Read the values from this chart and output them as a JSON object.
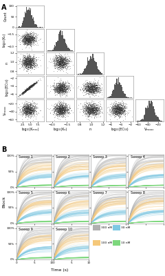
{
  "scatter_color": "#333333",
  "hist_color": "#555555",
  "sweep_colors_order": [
    "300nM",
    "100nM",
    "30nM",
    "10nM"
  ],
  "sweep_colors": {
    "300nM": "#b0b0b0",
    "30nM": "#7ec8e3",
    "100nM": "#f5c87a",
    "10nM": "#7dd87d"
  },
  "sweep_labels": {
    "300nM": "300 nM",
    "30nM": "30 nM",
    "100nM": "100 nM",
    "10nM": "10 nM"
  },
  "peak_blocks": {
    "300nM": 0.9,
    "100nM": 0.68,
    "30nM": 0.38,
    "10nM": 0.07
  },
  "time_consts": {
    "300nM": 1.8,
    "100nM": 2.2,
    "30nM": 3.0,
    "10nM": 4.5
  },
  "xlabels": [
    "log10(Kmax)",
    "log10(Kn)",
    "n",
    "log10(EC50)",
    "Vmax"
  ],
  "xlabel_display": [
    "log₁₀(Kₘₐₓ)",
    "log₁₀(Kₙ)",
    "n",
    "log₁₀(EC₅₀)",
    "Vₘₐₓₐₓ"
  ],
  "ylabel_display": [
    "Count",
    "log₁₀(Kₙ)",
    "n",
    "log₁₀(EC₅₀)",
    "Vₘₐₓₐₓ"
  ],
  "background": "#ffffff"
}
